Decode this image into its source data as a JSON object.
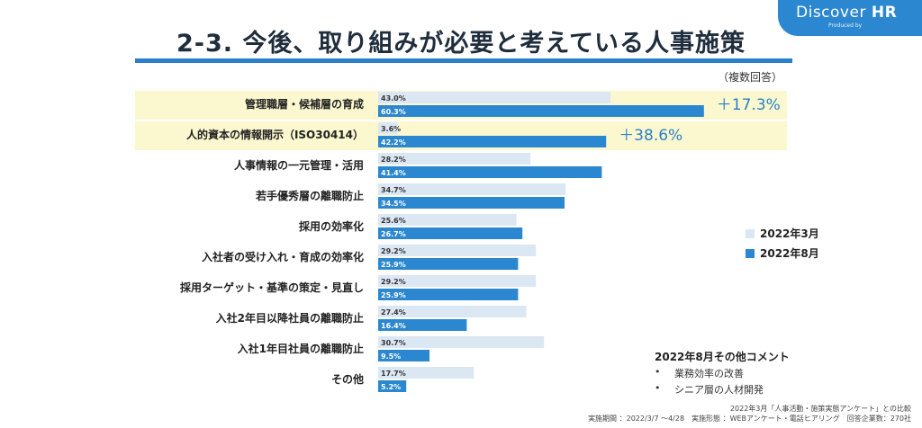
{
  "header": {
    "title": "2-3. 今後、取り組みが必要と考えている人事施策",
    "logo_text_a": "Discover ",
    "logo_text_b": "HR",
    "logo_sub": "Produced by"
  },
  "note": "（複数回答）",
  "colors": {
    "march": "#dce7f4",
    "august": "#2b87cf",
    "highlight": "#fbf8cf",
    "diff_text": "#2a7fc9",
    "title_rule": "#2a7fc9"
  },
  "chart_data": {
    "type": "bar",
    "orientation": "horizontal",
    "categories": [
      "管理職層・候補層の育成",
      "人的資本の情報開示（ISO30414）",
      "人事情報の一元管理・活用",
      "若手優秀層の離職防止",
      "採用の効率化",
      "入社者の受け入れ・育成の効率化",
      "採用ターゲット・基準の策定・見直し",
      "入社2年目以降社員の離職防止",
      "入社1年目社員の離職防止",
      "その他"
    ],
    "series": [
      {
        "name": "2022年3月",
        "values": [
          43.0,
          3.6,
          28.2,
          34.7,
          25.6,
          29.2,
          29.2,
          27.4,
          30.7,
          17.7
        ],
        "labels": [
          "43.0%",
          "3.6%",
          "28.2%",
          "34.7%",
          "25.6%",
          "29.2%",
          "29.2%",
          "27.4%",
          "30.7%",
          "17.7%"
        ]
      },
      {
        "name": "2022年8月",
        "values": [
          60.3,
          42.2,
          41.4,
          34.5,
          26.7,
          25.9,
          25.9,
          16.4,
          9.5,
          5.2
        ],
        "labels": [
          "60.3%",
          "42.2%",
          "41.4%",
          "34.5%",
          "26.7%",
          "25.9%",
          "25.9%",
          "16.4%",
          "9.5%",
          "5.2%"
        ]
      }
    ],
    "highlighted_categories": [
      0,
      1
    ],
    "annotations": [
      {
        "category_index": 0,
        "text": "＋17.3%"
      },
      {
        "category_index": 1,
        "text": "＋38.6%"
      }
    ],
    "xlim": [
      0,
      70
    ],
    "grid": false,
    "legend_position": "right"
  },
  "legend": {
    "march": "2022年3月",
    "august": "2022年8月"
  },
  "comments": {
    "title": "2022年8月その他コメント",
    "items": [
      "業務効率の改善",
      "シニア層の人材開発"
    ],
    "bullet": "•"
  },
  "footer": {
    "line1": "2022年3月「人事活動・施策実態アンケート」との比較",
    "line2": "実施期間 ：2022/3/7 ～4/28　実施形態 ：WEBアンケート・電話ヒアリング　回答企業数：270社"
  }
}
